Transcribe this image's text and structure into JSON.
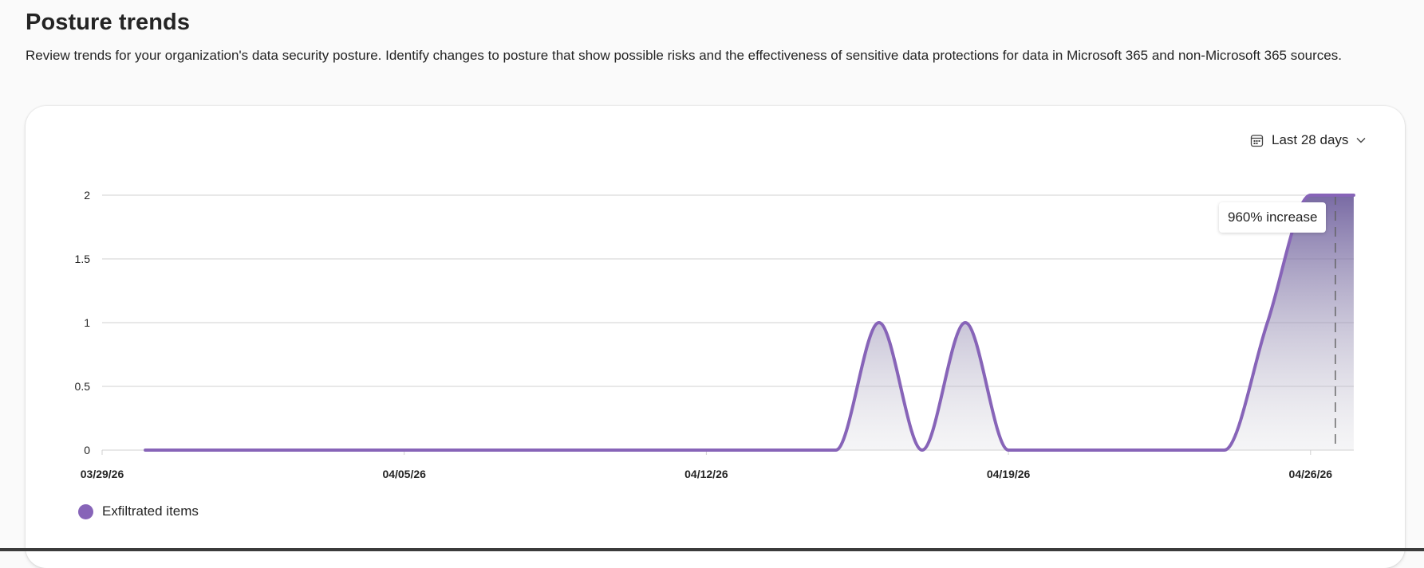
{
  "page": {
    "title": "Posture trends",
    "description": "Review trends for your organization's data security posture. Identify changes to posture that show possible risks and the effectiveness of sensitive data protections for data in Microsoft 365 and non-Microsoft 365 sources."
  },
  "filter": {
    "date_range_label": "Last 28 days",
    "calendar_icon": "calendar-icon",
    "chevron_icon": "chevron-down-icon"
  },
  "callout": {
    "text": "960% increase"
  },
  "colors": {
    "series": "#8764b8",
    "grid": "#d1d1d1",
    "marker": "#616161"
  },
  "chart_data": {
    "type": "area",
    "x": [
      "03/30/26",
      "03/31/26",
      "04/01/26",
      "04/02/26",
      "04/03/26",
      "04/04/26",
      "04/05/26",
      "04/06/26",
      "04/07/26",
      "04/08/26",
      "04/09/26",
      "04/10/26",
      "04/11/26",
      "04/12/26",
      "04/13/26",
      "04/14/26",
      "04/15/26",
      "04/16/26",
      "04/17/26",
      "04/18/26",
      "04/19/26",
      "04/20/26",
      "04/21/26",
      "04/22/26",
      "04/23/26",
      "04/24/26",
      "04/25/26",
      "04/26/26",
      "04/27/26"
    ],
    "x_ticks": [
      "03/29/26",
      "04/05/26",
      "04/12/26",
      "04/19/26",
      "04/26/26"
    ],
    "y_ticks": [
      "0",
      "0.5",
      "1",
      "1.5",
      "2"
    ],
    "ylim": [
      0,
      2
    ],
    "series": [
      {
        "name": "Exfiltrated items",
        "values": [
          0,
          0,
          0,
          0,
          0,
          0,
          0,
          0,
          0,
          0,
          0,
          0,
          0,
          0,
          0,
          0,
          0,
          1,
          0,
          1,
          0,
          0,
          0,
          0,
          0,
          0,
          1,
          2,
          2
        ]
      }
    ],
    "marker_date": "04/27/26",
    "legend": "bottom-left",
    "grid": true
  }
}
